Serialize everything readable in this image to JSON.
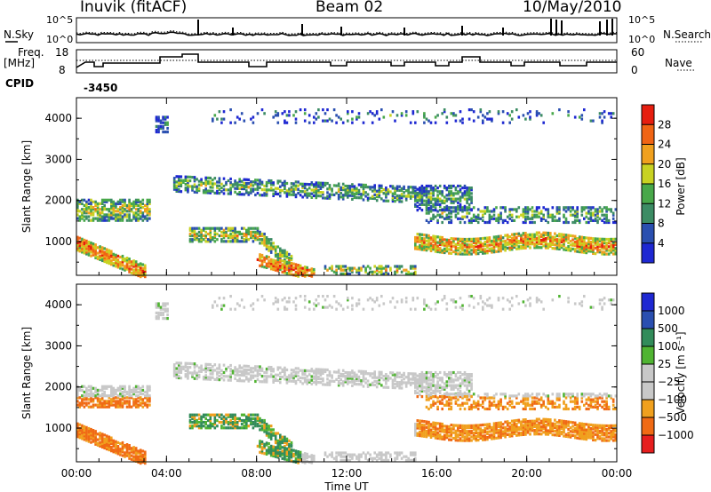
{
  "header": {
    "station": "Inuvik (fitACF)",
    "beam": "Beam 02",
    "date": "10/May/2010"
  },
  "strip_labels": {
    "nsky": "N.Sky",
    "nsearch": "N.Search",
    "freq_line1": "Freq.",
    "freq_line2": "[MHz]",
    "nave": "Nave",
    "cpid": "CPID",
    "cpid_value": "-3450",
    "noise_ticks": [
      "10^5",
      "10^0"
    ],
    "noise_ticks_right": [
      "10^5",
      "10^0"
    ],
    "freq_ticks": [
      "18",
      "8"
    ],
    "nave_ticks": [
      "60",
      "0"
    ]
  },
  "colors": {
    "power_scale": [
      "#1e28d2",
      "#2a4fb0",
      "#3c8c64",
      "#48a84a",
      "#c8d222",
      "#f0a01e",
      "#f06414",
      "#e61e0f"
    ],
    "velocity_scale": [
      "#e61e1e",
      "#f06a14",
      "#f0a01e",
      "#c8c8c8",
      "#c8c8c8",
      "#50b432",
      "#328c5a",
      "#2a4fb0",
      "#1e28d2"
    ]
  },
  "chart_data": [
    {
      "type": "heatmap",
      "name": "power",
      "xlabel": "",
      "ylabel": "Slant Range [km]",
      "x_ticks": [
        "00:00",
        "04:00",
        "08:00",
        "12:00",
        "16:00",
        "20:00",
        "00:00"
      ],
      "y_ticks": [
        1000,
        2000,
        3000,
        4000
      ],
      "xlim_hours": [
        0,
        24
      ],
      "ylim_km": [
        180,
        4500
      ],
      "colorbar": {
        "label": "Power [dB]",
        "ticks": [
          4,
          8,
          12,
          16,
          20,
          24,
          28
        ]
      }
    },
    {
      "type": "heatmap",
      "name": "velocity",
      "xlabel": "Time UT",
      "ylabel": "Slant Range [km]",
      "x_ticks": [
        "00:00",
        "04:00",
        "08:00",
        "12:00",
        "16:00",
        "20:00",
        "00:00"
      ],
      "y_ticks": [
        1000,
        2000,
        3000,
        4000
      ],
      "xlim_hours": [
        0,
        24
      ],
      "ylim_km": [
        180,
        4500
      ],
      "colorbar": {
        "label": "Velocity [m s⁻¹]",
        "ticks": [
          -1000,
          -500,
          -100,
          -25,
          25,
          100,
          500,
          1000
        ],
        "tick_labels": [
          "−1000",
          "−500",
          "−100",
          "−25",
          "25",
          "100",
          "500",
          "1000"
        ]
      }
    }
  ]
}
